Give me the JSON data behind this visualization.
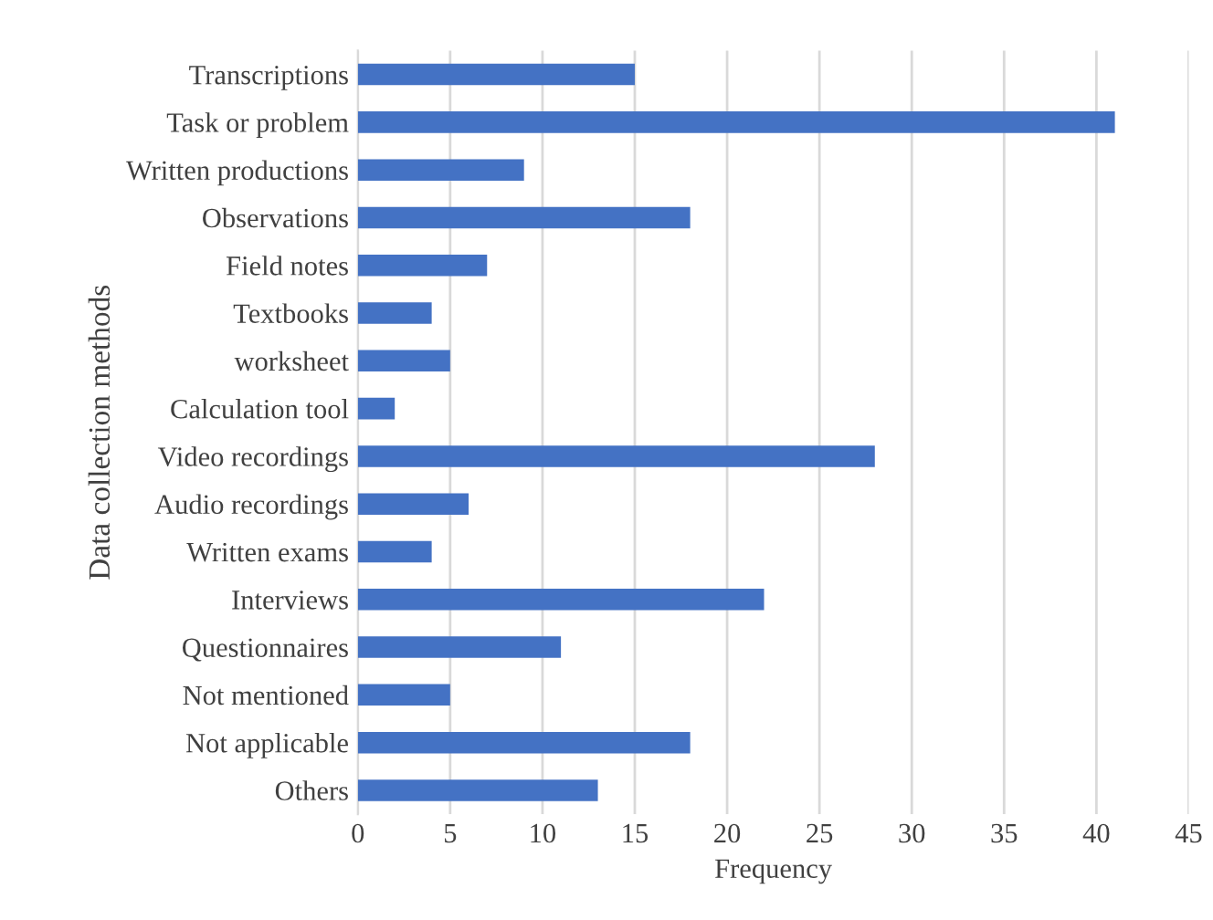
{
  "chart_data": {
    "type": "bar",
    "orientation": "horizontal",
    "xlabel": "Frequency",
    "ylabel": "Data collection methods",
    "categories": [
      "Transcriptions",
      "Task or problem",
      "Written productions",
      "Observations",
      "Field notes",
      "Textbooks",
      "worksheet",
      "Calculation tool",
      "Video recordings",
      "Audio recordings",
      "Written exams",
      "Interviews",
      "Questionnaires",
      "Not mentioned",
      "Not applicable",
      "Others"
    ],
    "values": [
      15,
      41,
      9,
      18,
      7,
      4,
      5,
      2,
      28,
      6,
      4,
      22,
      11,
      5,
      18,
      13
    ],
    "color": "#4472c4",
    "xlim": [
      0,
      45
    ],
    "xticks": [
      0,
      5,
      10,
      15,
      20,
      25,
      30,
      35,
      40,
      45
    ],
    "grid": "x",
    "legend": false
  }
}
